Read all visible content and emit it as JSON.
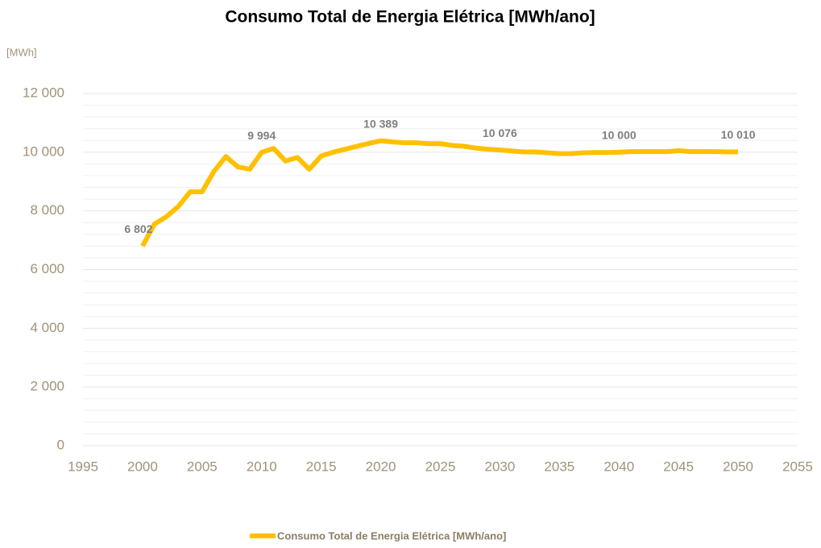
{
  "chart_data": {
    "type": "line",
    "title": "Consumo Total de Energia Elétrica [MWh/ano]",
    "y_label": "[MWh]",
    "x": [
      2000,
      2001,
      2002,
      2003,
      2004,
      2005,
      2006,
      2007,
      2008,
      2009,
      2010,
      2011,
      2012,
      2013,
      2014,
      2015,
      2016,
      2017,
      2018,
      2019,
      2020,
      2021,
      2022,
      2023,
      2024,
      2025,
      2026,
      2027,
      2028,
      2029,
      2030,
      2031,
      2032,
      2033,
      2034,
      2035,
      2036,
      2037,
      2038,
      2039,
      2040,
      2041,
      2042,
      2043,
      2044,
      2045,
      2046,
      2047,
      2048,
      2049,
      2050
    ],
    "series": [
      {
        "name": "Consumo Total de Energia Elétrica [MWh/ano]",
        "color": "#ffc000",
        "values": [
          6802,
          7550,
          7800,
          8150,
          8650,
          8650,
          9350,
          9850,
          9500,
          9420,
          9994,
          10130,
          9700,
          9820,
          9420,
          9870,
          10000,
          10100,
          10200,
          10300,
          10389,
          10350,
          10320,
          10320,
          10290,
          10290,
          10230,
          10200,
          10140,
          10100,
          10076,
          10040,
          10010,
          10010,
          9980,
          9950,
          9950,
          9980,
          9990,
          9990,
          10000,
          10020,
          10020,
          10020,
          10020,
          10050,
          10020,
          10020,
          10020,
          10010,
          10010
        ],
        "value_labels": [
          "6 802",
          null,
          null,
          null,
          null,
          null,
          null,
          null,
          null,
          null,
          "9 994",
          null,
          null,
          null,
          null,
          null,
          null,
          null,
          null,
          null,
          "10 389",
          null,
          null,
          null,
          null,
          null,
          null,
          null,
          null,
          null,
          "10 076",
          null,
          null,
          null,
          null,
          null,
          null,
          null,
          null,
          null,
          "10 000",
          null,
          null,
          null,
          null,
          null,
          null,
          null,
          null,
          null,
          "10 010"
        ]
      }
    ],
    "xlim": [
      1995,
      2055
    ],
    "xticks": [
      1995,
      2000,
      2005,
      2010,
      2015,
      2020,
      2025,
      2030,
      2035,
      2040,
      2045,
      2050,
      2055
    ],
    "ylim": [
      0,
      12000
    ],
    "yticks": [
      0,
      {
        "value": 2000,
        "label": "2 000"
      },
      {
        "value": 4000,
        "label": "4 000"
      },
      {
        "value": 6000,
        "label": "6 000"
      },
      {
        "value": 8000,
        "label": "8 000"
      },
      {
        "value": 10000,
        "label": "10 000"
      },
      {
        "value": 12000,
        "label": "12 000"
      }
    ],
    "grid": true,
    "legend": "bottom"
  }
}
